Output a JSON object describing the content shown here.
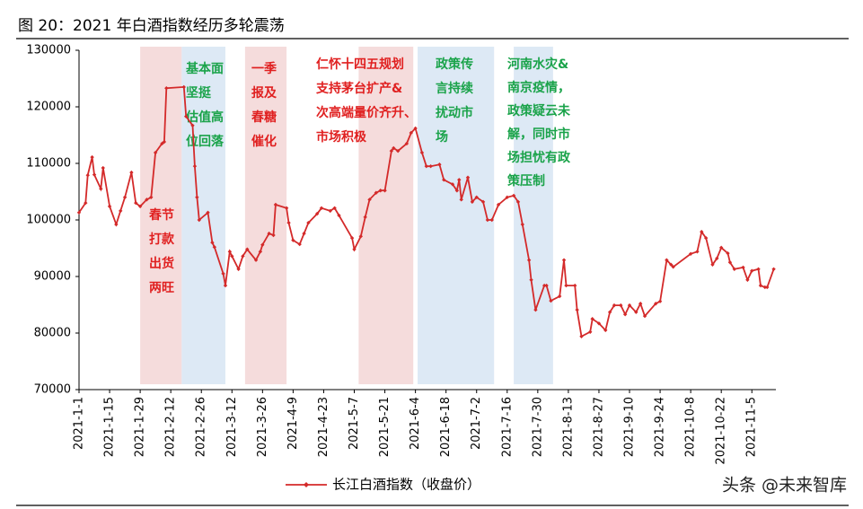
{
  "chart_data": {
    "type": "line",
    "title": "图 20：2021 年白酒指数经历多轮震荡",
    "watermark": "头条 @未来智库",
    "xlim": [
      "2021-1-1",
      "2021-11-16"
    ],
    "xticks": [
      "2021-1-1",
      "2021-1-15",
      "2021-1-29",
      "2021-2-12",
      "2021-2-26",
      "2021-3-12",
      "2021-3-26",
      "2021-4-9",
      "2021-4-23",
      "2021-5-7",
      "2021-5-21",
      "2021-6-4",
      "2021-6-18",
      "2021-7-2",
      "2021-7-16",
      "2021-7-30",
      "2021-8-13",
      "2021-8-27",
      "2021-9-10",
      "2021-9-24",
      "2021-10-8",
      "2021-10-22",
      "2021-11-5"
    ],
    "ylim": [
      70000,
      130000
    ],
    "yticks": [
      70000,
      80000,
      90000,
      100000,
      110000,
      120000,
      130000
    ],
    "legend": "bottom",
    "regions": [
      {
        "start": "2021-1-29",
        "end": "2021-2-17",
        "color": "#f5dcdc",
        "text_color": "#e02020",
        "lines": [
          "春节",
          "打款",
          "出货",
          "两旺"
        ]
      },
      {
        "start": "2021-2-17",
        "end": "2021-3-9",
        "color": "#dde9f5",
        "text_color": "#1aa34a",
        "lines": [
          "基本面",
          "坚挺",
          "估值高",
          "位回落"
        ]
      },
      {
        "start": "2021-3-18",
        "end": "2021-4-6",
        "color": "#f5dcdc",
        "text_color": "#e02020",
        "lines": [
          "一季",
          "报及",
          "春糖",
          "催化"
        ]
      },
      {
        "start": "2021-5-9",
        "end": "2021-6-3",
        "color": "#f5dcdc",
        "text_color": "#e02020",
        "lines": [
          "仁怀十四五规划",
          "支持茅台扩产&",
          "次高端量价齐升、",
          "市场积极"
        ]
      },
      {
        "start": "2021-6-5",
        "end": "2021-7-10",
        "color": "#dde9f5",
        "text_color": "#1aa34a",
        "lines": [
          "政策传",
          "言持续",
          "扰动市",
          "场"
        ]
      },
      {
        "start": "2021-7-19",
        "end": "2021-8-6",
        "color": "#dde9f5",
        "text_color": "#1aa34a",
        "lines": [
          "河南水灾&",
          "南京疫情，",
          "政策疑云未",
          "解，同时市",
          "场担忧有政",
          "策压制"
        ]
      }
    ],
    "x": [
      "2021-1-1",
      "2021-1-4",
      "2021-1-5",
      "2021-1-7",
      "2021-1-8",
      "2021-1-11",
      "2021-1-12",
      "2021-1-15",
      "2021-1-18",
      "2021-1-20",
      "2021-1-22",
      "2021-1-25",
      "2021-1-27",
      "2021-1-29",
      "2021-2-1",
      "2021-2-3",
      "2021-2-5",
      "2021-2-8",
      "2021-2-9",
      "2021-2-10",
      "2021-2-18",
      "2021-2-19",
      "2021-2-22",
      "2021-2-23",
      "2021-2-24",
      "2021-2-25",
      "2021-3-1",
      "2021-3-3",
      "2021-3-4",
      "2021-3-8",
      "2021-3-9",
      "2021-3-11",
      "2021-3-12",
      "2021-3-15",
      "2021-3-17",
      "2021-3-19",
      "2021-3-23",
      "2021-3-25",
      "2021-3-26",
      "2021-3-29",
      "2021-3-31",
      "2021-4-1",
      "2021-4-6",
      "2021-4-7",
      "2021-4-9",
      "2021-4-12",
      "2021-4-14",
      "2021-4-16",
      "2021-4-20",
      "2021-4-22",
      "2021-4-26",
      "2021-4-28",
      "2021-4-30",
      "2021-5-6",
      "2021-5-7",
      "2021-5-10",
      "2021-5-12",
      "2021-5-14",
      "2021-5-17",
      "2021-5-19",
      "2021-5-21",
      "2021-5-24",
      "2021-5-25",
      "2021-5-27",
      "2021-5-31",
      "2021-6-2",
      "2021-6-4",
      "2021-6-7",
      "2021-6-9",
      "2021-6-11",
      "2021-6-15",
      "2021-6-17",
      "2021-6-21",
      "2021-6-23",
      "2021-6-24",
      "2021-6-25",
      "2021-6-28",
      "2021-6-30",
      "2021-7-2",
      "2021-7-5",
      "2021-7-7",
      "2021-7-9",
      "2021-7-12",
      "2021-7-16",
      "2021-7-19",
      "2021-7-21",
      "2021-7-23",
      "2021-7-26",
      "2021-7-27",
      "2021-7-29",
      "2021-8-2",
      "2021-8-3",
      "2021-8-5",
      "2021-8-9",
      "2021-8-11",
      "2021-8-12",
      "2021-8-16",
      "2021-8-17",
      "2021-8-19",
      "2021-8-23",
      "2021-8-24",
      "2021-8-27",
      "2021-8-30",
      "2021-9-1",
      "2021-9-3",
      "2021-9-6",
      "2021-9-8",
      "2021-9-10",
      "2021-9-13",
      "2021-9-15",
      "2021-9-17",
      "2021-9-22",
      "2021-9-24",
      "2021-9-27",
      "2021-9-29",
      "2021-9-30",
      "2021-10-8",
      "2021-10-11",
      "2021-10-13",
      "2021-10-15",
      "2021-10-18",
      "2021-10-20",
      "2021-10-22",
      "2021-10-25",
      "2021-10-26",
      "2021-10-28",
      "2021-11-1",
      "2021-11-3",
      "2021-11-5",
      "2021-11-8",
      "2021-11-9",
      "2021-11-11",
      "2021-11-12",
      "2021-11-15"
    ],
    "series": [
      {
        "name": "长江白酒指数（收盘价）",
        "color": "#d42a2a",
        "values": [
          101300,
          103000,
          107900,
          111100,
          108000,
          105500,
          109200,
          102400,
          99200,
          101600,
          104000,
          108400,
          103000,
          102400,
          103600,
          104000,
          111900,
          113500,
          113800,
          123300,
          123500,
          118300,
          116700,
          109500,
          104000,
          100000,
          101300,
          96000,
          95200,
          90500,
          88400,
          94400,
          93600,
          91300,
          93600,
          94800,
          92900,
          94400,
          95600,
          97600,
          97300,
          102700,
          102100,
          99500,
          96400,
          95700,
          97600,
          99500,
          101100,
          102100,
          101600,
          102100,
          100800,
          96800,
          94800,
          97100,
          100500,
          103600,
          104800,
          105200,
          105200,
          112200,
          112700,
          112200,
          113500,
          115400,
          116200,
          111900,
          109500,
          109500,
          109800,
          107100,
          106300,
          105200,
          107100,
          103600,
          107500,
          103200,
          104000,
          103200,
          100000,
          100000,
          102700,
          104000,
          104300,
          103200,
          99200,
          92900,
          89400,
          84100,
          88400,
          88400,
          85700,
          86500,
          92900,
          88400,
          88400,
          84100,
          79400,
          80200,
          82500,
          81700,
          80500,
          83700,
          84900,
          84900,
          83300,
          84900,
          83700,
          85200,
          83000,
          85200,
          85600,
          92900,
          92100,
          91700,
          94000,
          94400,
          97900,
          96800,
          92100,
          93200,
          95100,
          94100,
          92500,
          91300,
          91600,
          89400,
          91000,
          91300,
          88400,
          88100,
          88100,
          91300
        ]
      }
    ]
  }
}
